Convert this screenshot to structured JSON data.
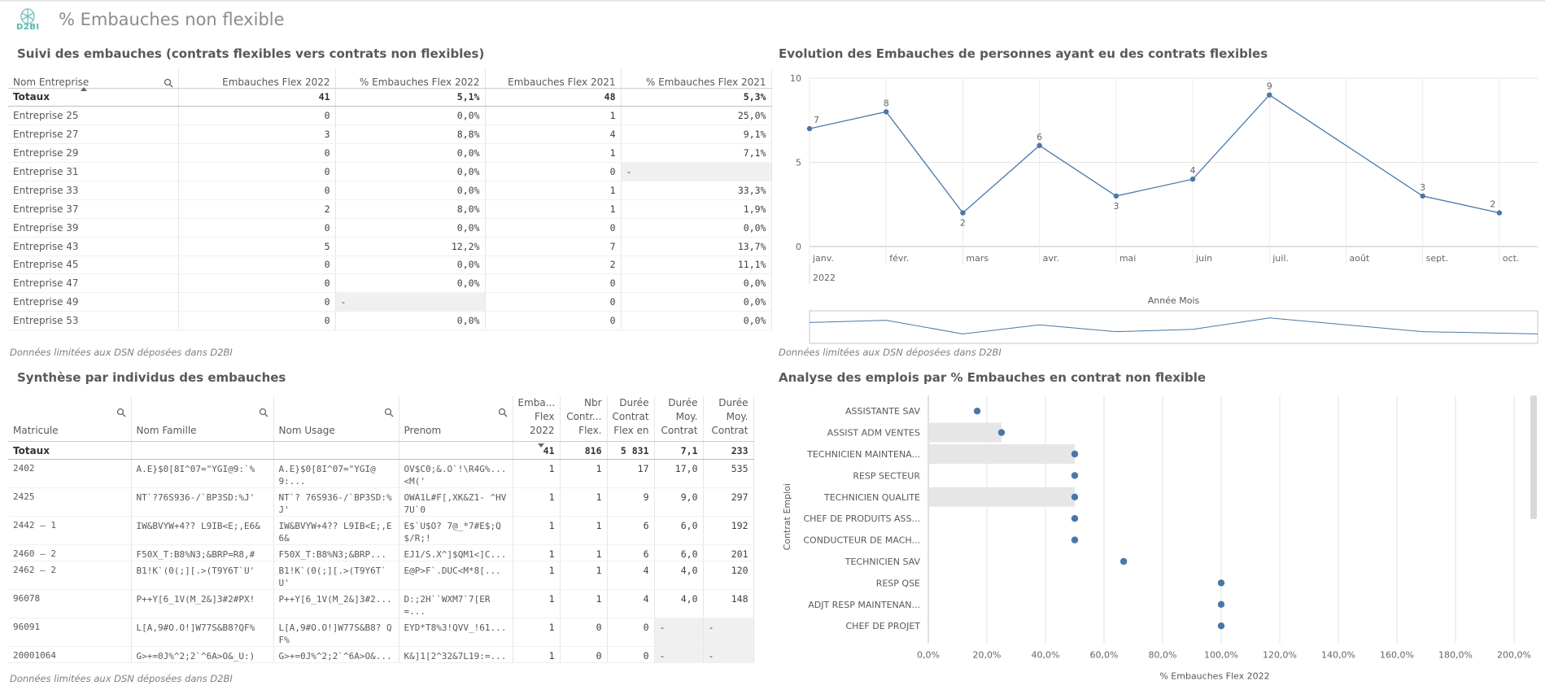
{
  "app": {
    "logo_text": "D2BI",
    "sheet_title": "% Embauches non flexible"
  },
  "panel1": {
    "title": "Suivi des embauches (contrats flexibles vers contrats non flexibles)",
    "columns": [
      "Nom Entreprise",
      "Embauches Flex 2022",
      "% Embauches Flex 2022",
      "Embauches Flex 2021",
      "% Embauches Flex 2021"
    ],
    "totals": {
      "label": "Totaux",
      "e2022": "41",
      "p2022": "5,1%",
      "e2021": "48",
      "p2021": "5,3%"
    },
    "rows": [
      [
        "Entreprise 25",
        "0",
        "0,0%",
        "1",
        "25,0%"
      ],
      [
        "Entreprise 27",
        "3",
        "8,8%",
        "4",
        "9,1%"
      ],
      [
        "Entreprise 29",
        "0",
        "0,0%",
        "1",
        "7,1%"
      ],
      [
        "Entreprise 31",
        "0",
        "0,0%",
        "0",
        "-"
      ],
      [
        "Entreprise 33",
        "0",
        "0,0%",
        "1",
        "33,3%"
      ],
      [
        "Entreprise 37",
        "2",
        "8,0%",
        "1",
        "1,9%"
      ],
      [
        "Entreprise 39",
        "0",
        "0,0%",
        "0",
        "0,0%"
      ],
      [
        "Entreprise 43",
        "5",
        "12,2%",
        "7",
        "13,7%"
      ],
      [
        "Entreprise 45",
        "0",
        "0,0%",
        "2",
        "11,1%"
      ],
      [
        "Entreprise 47",
        "0",
        "0,0%",
        "0",
        "0,0%"
      ],
      [
        "Entreprise 49",
        "0",
        "-",
        "0",
        "0,0%"
      ],
      [
        "Entreprise 53",
        "0",
        "0,0%",
        "0",
        "0,0%"
      ]
    ],
    "footnote": "Données limitées aux DSN déposées dans D2BI"
  },
  "panel2": {
    "title": "Evolution des Embauches de personnes ayant eu des contrats flexibles",
    "footnote": "Données limitées aux DSN déposées dans D2BI"
  },
  "panel3": {
    "title": "Synthèse par individus des embauches",
    "columns": [
      "Matricule",
      "Nom Famille",
      "Nom Usage",
      "Prenom",
      "Emba... Flex 2022",
      "Nbr Contr... Flex.",
      "Durée Contrat Flex en",
      "Durée Moy. Contrat",
      "Durée Moy. Contrat"
    ],
    "totals": [
      "Totaux",
      "",
      "",
      "",
      "41",
      "816",
      "5 831",
      "7,1",
      "233"
    ],
    "rows": [
      [
        "2402",
        "A.E}$0[8I^07=\"YGI@9:`%",
        "A.E}$0[8I^07=\"YGI@9:...",
        "OV$C0;&.O`!\\R4G%... <M('",
        "1",
        "1",
        "17",
        "17,0",
        "535"
      ],
      [
        "2425",
        "NT`?76S936-/`BP3SD:%J'",
        "NT`? 76S936-/`BP3SD:%J'",
        "OWA1L#F[,XK&Z1- ^HV7U`0",
        "1",
        "1",
        "9",
        "9,0",
        "297"
      ],
      [
        "2442 — 1",
        "IW&BVYW+4?? L9IB<E;,E6&",
        "IW&BVYW+4?? L9IB<E;,E6&",
        "E$`U$O? 7@_*7#E$;Q$/R;!",
        "1",
        "1",
        "6",
        "6,0",
        "192"
      ],
      [
        "2460 — 2",
        "F50X_T:B8%N3;&BRP=R8,#",
        "F50X_T:B8%N3;&BRP...",
        "EJ1/S.X^]$QM1<]C...",
        "1",
        "1",
        "6",
        "6,0",
        "201"
      ],
      [
        "2462 — 2",
        "B1!K`(0(;][.>(T9Y6T`U'",
        "B1!K`(0(;][.>(T9Y6T`U'",
        "E@P>F`.DUC<M*8[...",
        "1",
        "1",
        "4",
        "4,0",
        "120"
      ],
      [
        "96078",
        "P++Y[6_1V(M_2&]3#2#PX!",
        "P++Y[6_1V(M_2&]3#2...",
        "D:;2H``WXM7`7[ER=...",
        "1",
        "1",
        "4",
        "4,0",
        "148"
      ],
      [
        "96091",
        "L[A,9#O.O!]W77S&B8?QF%",
        "L[A,9#O.O!]W77S&B8? QF%",
        "EYD*T8%3!QVV_!61...",
        "1",
        "0",
        "0",
        "-",
        "-"
      ],
      [
        "20001064",
        "G>+=0J%^2;2`^6A>O&_U:)",
        "G>+=0J%^2;2`^6A>O&...",
        "K&]1[2^32&7L19:=...",
        "1",
        "0",
        "0",
        "-",
        "-"
      ]
    ],
    "footnote": "Données limitées aux DSN déposées dans D2BI"
  },
  "panel4": {
    "title": "Analyse des emplois par % Embauches en contrat non flexible",
    "footnote": ""
  },
  "chart_data": [
    {
      "type": "line",
      "title": "Evolution des Embauches de personnes ayant eu des contrats flexibles",
      "xlabel": "Année Mois",
      "year_label": "2022",
      "categories": [
        "janv.",
        "févr.",
        "mars",
        "avr.",
        "mai",
        "juin",
        "juil.",
        "août",
        "sept.",
        "oct."
      ],
      "x_index": [
        0,
        1,
        2,
        3,
        4,
        5,
        6,
        8,
        9
      ],
      "values": [
        7,
        8,
        2,
        6,
        3,
        4,
        9,
        3,
        2
      ],
      "labels": [
        "7",
        "8",
        "2",
        "6",
        "3",
        "4",
        "9",
        "3",
        "2"
      ],
      "yticks": [
        "0",
        "5",
        "10"
      ],
      "ylim": [
        0,
        10
      ],
      "grid": true
    },
    {
      "type": "scatter",
      "title": "Analyse des emplois par % Embauches en contrat non flexible",
      "xlabel": "% Embauches Flex 2022",
      "ylabel": "Contrat Emploi",
      "categories": [
        "ASSISTANTE SAV",
        "ASSIST ADM VENTES",
        "TECHNICIEN MAINTENA...",
        "RESP SECTEUR",
        "TECHNICIEN QUALITE",
        "CHEF DE PRODUITS ASS...",
        "CONDUCTEUR DE MACH...",
        "TECHNICIEN SAV",
        "RESP QSE",
        "ADJT RESP MAINTENAN...",
        "CHEF DE PROJET"
      ],
      "values": [
        16.7,
        25,
        50,
        50,
        50,
        50,
        50,
        66.7,
        100,
        100,
        100
      ],
      "bars": [
        0,
        25,
        50,
        0,
        50,
        0,
        0,
        0,
        0,
        0,
        0
      ],
      "xticks": [
        "0,0%",
        "20,0%",
        "40,0%",
        "60,0%",
        "80,0%",
        "100,0%",
        "120,0%",
        "140,0%",
        "160,0%",
        "180,0%",
        "200,0%"
      ],
      "xlim": [
        0,
        200
      ],
      "grid": true
    }
  ]
}
